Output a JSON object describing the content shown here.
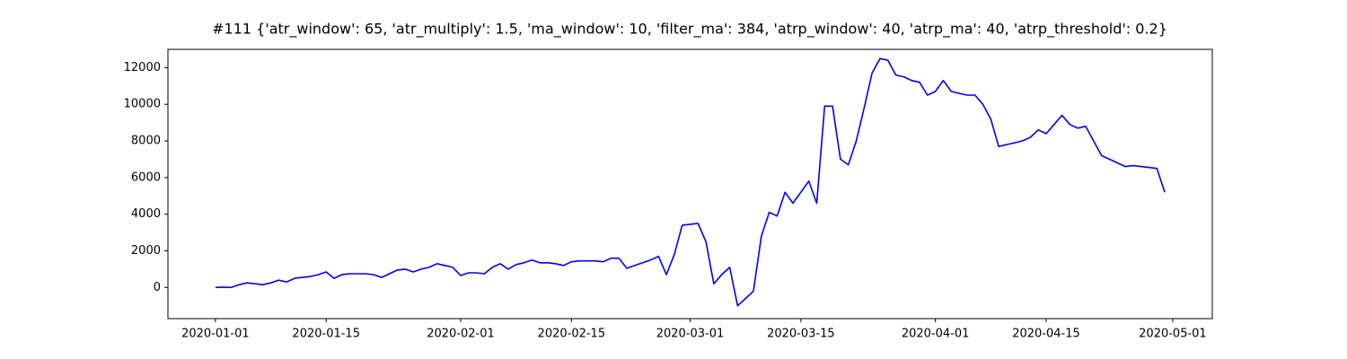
{
  "chart_data": {
    "type": "line",
    "title": "#111 {'atr_window': 65, 'atr_multiply': 1.5, 'ma_window': 10, 'filter_ma': 384, 'atrp_window': 40, 'atrp_ma': 40, 'atrp_threshold': 0.2}",
    "x": [
      "2020-01-01",
      "2020-01-02",
      "2020-01-03",
      "2020-01-04",
      "2020-01-05",
      "2020-01-06",
      "2020-01-07",
      "2020-01-08",
      "2020-01-09",
      "2020-01-10",
      "2020-01-11",
      "2020-01-12",
      "2020-01-13",
      "2020-01-14",
      "2020-01-15",
      "2020-01-16",
      "2020-01-17",
      "2020-01-18",
      "2020-01-19",
      "2020-01-20",
      "2020-01-21",
      "2020-01-22",
      "2020-01-23",
      "2020-01-24",
      "2020-01-25",
      "2020-01-26",
      "2020-01-27",
      "2020-01-28",
      "2020-01-29",
      "2020-01-30",
      "2020-01-31",
      "2020-02-01",
      "2020-02-02",
      "2020-02-03",
      "2020-02-04",
      "2020-02-05",
      "2020-02-06",
      "2020-02-07",
      "2020-02-08",
      "2020-02-09",
      "2020-02-10",
      "2020-02-11",
      "2020-02-12",
      "2020-02-13",
      "2020-02-14",
      "2020-02-15",
      "2020-02-16",
      "2020-02-17",
      "2020-02-18",
      "2020-02-19",
      "2020-02-20",
      "2020-02-21",
      "2020-02-22",
      "2020-02-23",
      "2020-02-24",
      "2020-02-25",
      "2020-02-26",
      "2020-02-27",
      "2020-02-28",
      "2020-02-29",
      "2020-03-01",
      "2020-03-02",
      "2020-03-03",
      "2020-03-04",
      "2020-03-05",
      "2020-03-06",
      "2020-03-07",
      "2020-03-08",
      "2020-03-09",
      "2020-03-10",
      "2020-03-11",
      "2020-03-12",
      "2020-03-13",
      "2020-03-14",
      "2020-03-15",
      "2020-03-16",
      "2020-03-17",
      "2020-03-18",
      "2020-03-19",
      "2020-03-20",
      "2020-03-21",
      "2020-03-22",
      "2020-03-23",
      "2020-03-24",
      "2020-03-25",
      "2020-03-26",
      "2020-03-27",
      "2020-03-28",
      "2020-03-29",
      "2020-03-30",
      "2020-03-31",
      "2020-04-01",
      "2020-04-02",
      "2020-04-03",
      "2020-04-04",
      "2020-04-05",
      "2020-04-06",
      "2020-04-07",
      "2020-04-08",
      "2020-04-09",
      "2020-04-10",
      "2020-04-11",
      "2020-04-12",
      "2020-04-13",
      "2020-04-14",
      "2020-04-15",
      "2020-04-16",
      "2020-04-17",
      "2020-04-18",
      "2020-04-19",
      "2020-04-20",
      "2020-04-21",
      "2020-04-22",
      "2020-04-23",
      "2020-04-24",
      "2020-04-25",
      "2020-04-26",
      "2020-04-27",
      "2020-04-28",
      "2020-04-29",
      "2020-04-30"
    ],
    "values": [
      0,
      20,
      0,
      150,
      250,
      200,
      150,
      250,
      400,
      300,
      500,
      550,
      600,
      700,
      850,
      500,
      700,
      750,
      750,
      750,
      700,
      550,
      750,
      950,
      1000,
      850,
      1000,
      1100,
      1300,
      1200,
      1100,
      650,
      800,
      800,
      750,
      1100,
      1300,
      1000,
      1250,
      1350,
      1500,
      1350,
      1350,
      1300,
      1200,
      1400,
      1450,
      1450,
      1450,
      1400,
      1600,
      1600,
      1050,
      1200,
      1350,
      1500,
      1700,
      700,
      1800,
      3400,
      3450,
      3500,
      2500,
      200,
      700,
      1100,
      -1000,
      -600,
      -200,
      2800,
      4100,
      3900,
      5200,
      4600,
      5200,
      5800,
      4600,
      9900,
      9900,
      7000,
      6700,
      8000,
      9800,
      11700,
      12500,
      12400,
      11600,
      11500,
      11300,
      11200,
      10500,
      10700,
      11300,
      10700,
      10600,
      10500,
      10500,
      10000,
      9200,
      7700,
      7800,
      7900,
      8000,
      8200,
      8600,
      8400,
      8900,
      9400,
      8900,
      8700,
      8800,
      8000,
      7200,
      7000,
      6800,
      6600,
      6650,
      6600,
      6550,
      6500,
      5200
    ],
    "color": "#0000ff",
    "xlim": [
      "2019-12-26",
      "2020-05-06"
    ],
    "xticks": [
      "2020-01-01",
      "2020-01-15",
      "2020-02-01",
      "2020-02-15",
      "2020-03-01",
      "2020-03-15",
      "2020-04-01",
      "2020-04-15",
      "2020-05-01"
    ],
    "ylim": [
      -1700,
      13000
    ],
    "yticks": [
      0,
      2000,
      4000,
      6000,
      8000,
      10000,
      12000
    ]
  }
}
